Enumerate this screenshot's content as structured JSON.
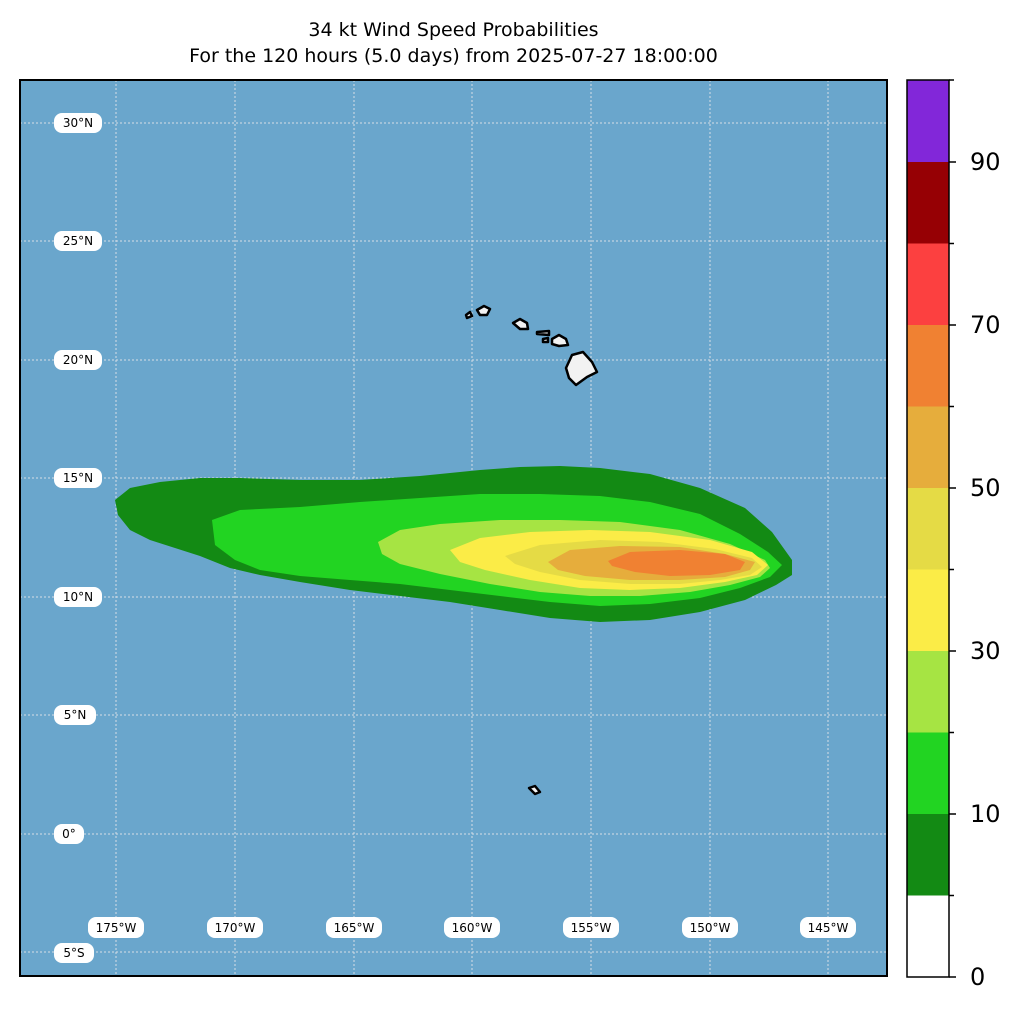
{
  "title_line1": "34 kt Wind Speed Probabilities",
  "title_line2": "For the 120 hours (5.0 days) from 2025-07-27 18:00:00",
  "map": {
    "lon_range": [
      -179,
      -142.5
    ],
    "lat_range": [
      -6,
      32
    ],
    "ocean_color": "#6aa6cc",
    "land_color": "#f2f2f2",
    "grid_lons": [
      -175,
      -170,
      -165,
      -160,
      -155,
      -150,
      -145
    ],
    "grid_lats": [
      -5,
      0,
      5,
      10,
      15,
      20,
      25,
      30
    ]
  },
  "lat_labels": [
    "30°N",
    "25°N",
    "20°N",
    "15°N",
    "10°N",
    "5°N",
    "0°",
    "5°S"
  ],
  "lon_labels": [
    "175°W",
    "170°W",
    "165°W",
    "160°W",
    "155°W",
    "150°W",
    "145°W"
  ],
  "colorbar": {
    "levels": [
      0,
      10,
      20,
      30,
      40,
      50,
      60,
      70,
      80,
      90,
      100
    ],
    "colors": [
      "#ffffff",
      "#138a14",
      "#22d422",
      "#a6e443",
      "#fbec47",
      "#e5db45",
      "#e6ad3c",
      "#f08132",
      "#fc4040",
      "#960004",
      "#8227d9"
    ],
    "tick_labels": [
      "0",
      "10",
      "30",
      "50",
      "70",
      "90"
    ]
  }
}
